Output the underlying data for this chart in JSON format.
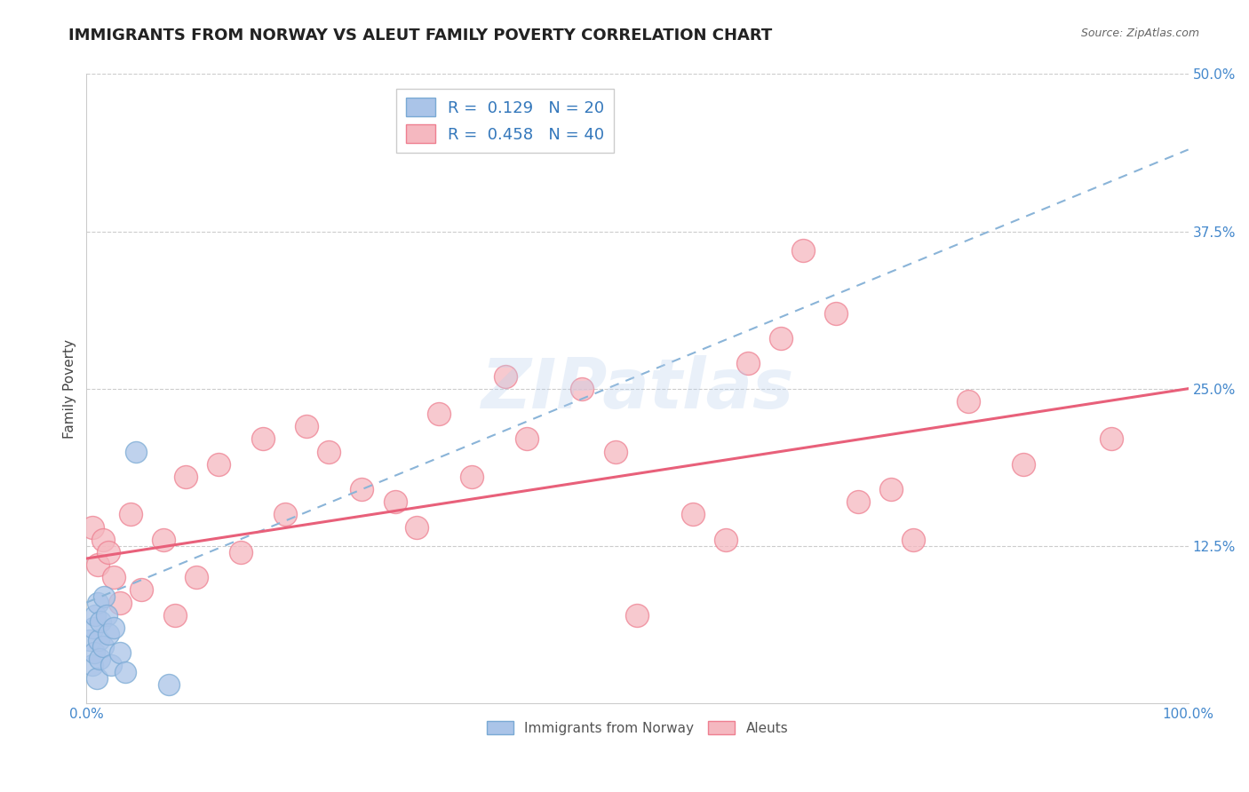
{
  "title": "IMMIGRANTS FROM NORWAY VS ALEUT FAMILY POVERTY CORRELATION CHART",
  "source_text": "Source: ZipAtlas.com",
  "ylabel": "Family Poverty",
  "watermark": "ZIPatlas",
  "xlim": [
    0.0,
    100.0
  ],
  "ylim": [
    0.0,
    50.0
  ],
  "x_ticks": [
    0.0,
    20.0,
    40.0,
    60.0,
    80.0,
    100.0
  ],
  "x_tick_labels": [
    "0.0%",
    "",
    "",
    "",
    "",
    "100.0%"
  ],
  "y_ticks": [
    0.0,
    12.5,
    25.0,
    37.5,
    50.0
  ],
  "y_tick_labels": [
    "",
    "12.5%",
    "25.0%",
    "37.5%",
    "50.0%"
  ],
  "legend_r1": "R =  0.129   N = 20",
  "legend_r2": "R =  0.458   N = 40",
  "norway_color": "#aac4e8",
  "norway_edge_color": "#7aaad4",
  "aleut_color": "#f5b8c0",
  "aleut_edge_color": "#ee7f90",
  "trend_norway_color": "#8ab4d8",
  "trend_aleut_color": "#e8607a",
  "background_color": "#ffffff",
  "grid_color": "#cccccc",
  "norway_x": [
    0.3,
    0.5,
    0.6,
    0.7,
    0.8,
    0.9,
    1.0,
    1.1,
    1.2,
    1.3,
    1.5,
    1.6,
    1.8,
    2.0,
    2.2,
    2.5,
    3.0,
    3.5,
    4.5,
    7.5
  ],
  "norway_y": [
    5.0,
    3.0,
    6.0,
    4.0,
    7.0,
    2.0,
    8.0,
    5.0,
    3.5,
    6.5,
    4.5,
    8.5,
    7.0,
    5.5,
    3.0,
    6.0,
    4.0,
    2.5,
    20.0,
    1.5
  ],
  "aleut_x": [
    0.5,
    1.0,
    1.5,
    2.0,
    2.5,
    3.0,
    4.0,
    5.0,
    7.0,
    8.0,
    9.0,
    10.0,
    12.0,
    14.0,
    16.0,
    18.0,
    20.0,
    22.0,
    25.0,
    28.0,
    30.0,
    32.0,
    35.0,
    38.0,
    40.0,
    45.0,
    48.0,
    50.0,
    55.0,
    58.0,
    60.0,
    63.0,
    65.0,
    68.0,
    70.0,
    73.0,
    75.0,
    80.0,
    85.0,
    93.0
  ],
  "aleut_y": [
    14.0,
    11.0,
    13.0,
    12.0,
    10.0,
    8.0,
    15.0,
    9.0,
    13.0,
    7.0,
    18.0,
    10.0,
    19.0,
    12.0,
    21.0,
    15.0,
    22.0,
    20.0,
    17.0,
    16.0,
    14.0,
    23.0,
    18.0,
    26.0,
    21.0,
    25.0,
    20.0,
    7.0,
    15.0,
    13.0,
    27.0,
    29.0,
    36.0,
    31.0,
    16.0,
    17.0,
    13.0,
    24.0,
    19.0,
    21.0
  ],
  "norway_trend_x": [
    0.0,
    100.0
  ],
  "norway_trend_y": [
    8.0,
    44.0
  ],
  "aleut_trend_x": [
    0.0,
    100.0
  ],
  "aleut_trend_y": [
    11.5,
    25.0
  ],
  "title_fontsize": 13,
  "label_fontsize": 11,
  "tick_fontsize": 11,
  "legend_fontsize": 13,
  "bottom_legend_labels": [
    "Immigrants from Norway",
    "Aleuts"
  ]
}
